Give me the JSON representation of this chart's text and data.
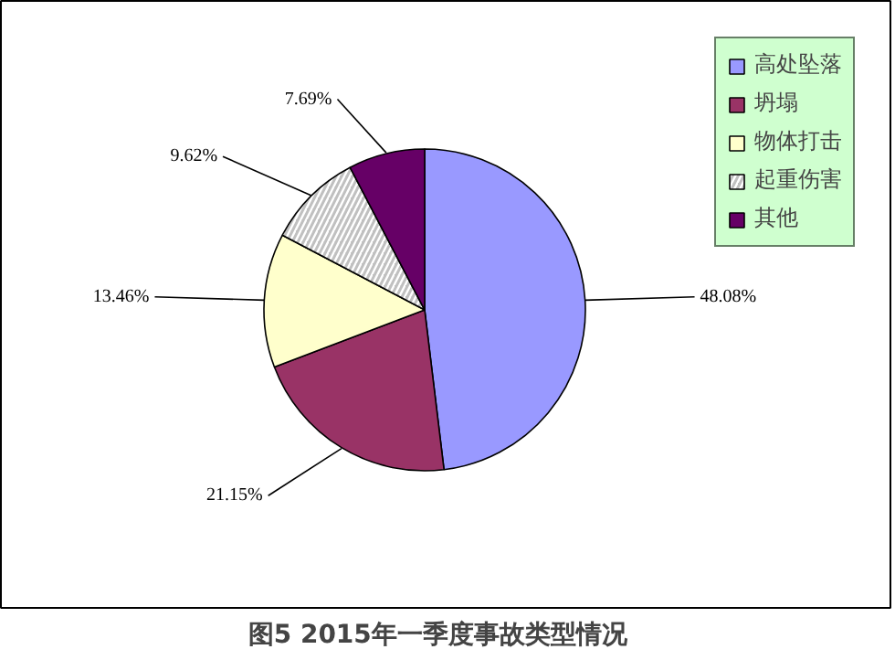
{
  "chart_data": {
    "type": "pie",
    "title": "图5   2015年一季度事故类型情况",
    "categories": [
      "高处坠落",
      "坍塌",
      "物体打击",
      "起重伤害",
      "其他"
    ],
    "values": [
      48.08,
      21.15,
      13.46,
      9.62,
      7.69
    ],
    "colors": [
      "#9999ff",
      "#993366",
      "#ffffcc",
      "#c0c0c0",
      "#660066"
    ],
    "value_labels": [
      "48.08%",
      "21.15%",
      "13.46%",
      "9.62%",
      "7.69%"
    ],
    "legend": "top right"
  }
}
